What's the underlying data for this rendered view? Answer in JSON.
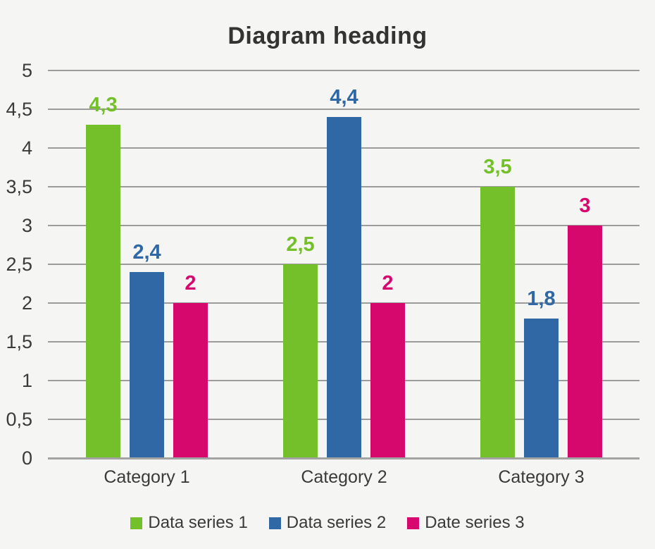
{
  "title": "Diagram heading",
  "chart_data": {
    "type": "bar",
    "title": "Diagram heading",
    "categories": [
      "Category 1",
      "Category 2",
      "Category 3"
    ],
    "series": [
      {
        "name": "Data series 1",
        "color": "#74c02a",
        "values": [
          4.3,
          2.5,
          3.5
        ],
        "value_labels": [
          "4,3",
          "2,5",
          "3,5"
        ]
      },
      {
        "name": "Data series 2",
        "color": "#2f68a5",
        "values": [
          2.4,
          4.4,
          1.8
        ],
        "value_labels": [
          "2,4",
          "4,4",
          "1,8"
        ]
      },
      {
        "name": "Date series 3",
        "color": "#d6086e",
        "values": [
          2.0,
          2.0,
          3.0
        ],
        "value_labels": [
          "2",
          "2",
          "3"
        ]
      }
    ],
    "ylim": [
      0,
      5
    ],
    "ytick_step": 0.5,
    "ytick_labels": [
      "0",
      "0,5",
      "1",
      "1,5",
      "2",
      "2,5",
      "3",
      "3,5",
      "4",
      "4,5",
      "5"
    ],
    "grid": true,
    "legend_position": "bottom",
    "xlabel": "",
    "ylabel": ""
  },
  "colors": {
    "background": "#f5f5f3",
    "gridline": "#9c9c9c",
    "axis_line": "#a3a3a3",
    "text": "#3a3a3a",
    "title_text": "#333333"
  }
}
